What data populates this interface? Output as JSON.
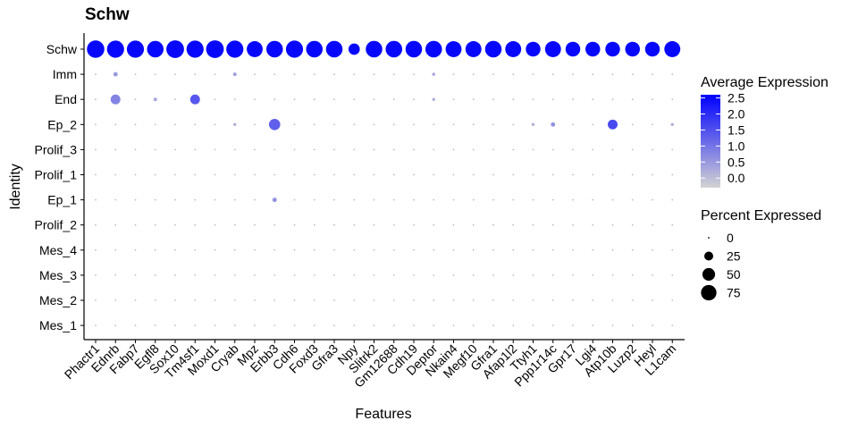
{
  "chart_data": {
    "type": "dotplot",
    "title": "Schw",
    "xlabel": "Features",
    "ylabel": "Identity",
    "features": [
      "Phactr1",
      "Ednrb",
      "Fabp7",
      "Egfl8",
      "Sox10",
      "Tm4sf1",
      "Moxd1",
      "Cryab",
      "Mpz",
      "Erbb3",
      "Cdh6",
      "Foxd3",
      "Gfra3",
      "Npy",
      "Slitrk2",
      "Gm12688",
      "Cdh19",
      "Deptor",
      "Nkain4",
      "Megf10",
      "Gfra1",
      "Afap1l2",
      "Ttyh1",
      "Ppp1r14c",
      "Gpr17",
      "Lgi4",
      "Atp10b",
      "Luzp2",
      "Heyl",
      "L1cam"
    ],
    "identities": [
      "Schw",
      "Imm",
      "End",
      "Ep_2",
      "Prolif_3",
      "Prolif_1",
      "Ep_1",
      "Prolif_2",
      "Mes_4",
      "Mes_3",
      "Mes_2",
      "Mes_1"
    ],
    "color_legend": {
      "title": "Average Expression",
      "ticks": [
        "2.5",
        "2.0",
        "1.5",
        "1.0",
        "0.5",
        "0.0"
      ],
      "tick_values": [
        2.5,
        2.0,
        1.5,
        1.0,
        0.5,
        0.0
      ],
      "range": [
        -0.3,
        2.6
      ],
      "low_color": "#d3d3d3",
      "high_color": "#0000ff"
    },
    "size_legend": {
      "title": "Percent Expressed",
      "values": [
        0,
        25,
        50,
        75
      ],
      "labels": [
        "0",
        "25",
        "50",
        "75"
      ]
    },
    "points": [
      {
        "identity": "Schw",
        "feature": "Phactr1",
        "pct": 95,
        "avg": 2.5
      },
      {
        "identity": "Schw",
        "feature": "Ednrb",
        "pct": 92,
        "avg": 2.5
      },
      {
        "identity": "Schw",
        "feature": "Fabp7",
        "pct": 92,
        "avg": 2.5
      },
      {
        "identity": "Schw",
        "feature": "Egfl8",
        "pct": 86,
        "avg": 2.5
      },
      {
        "identity": "Schw",
        "feature": "Sox10",
        "pct": 98,
        "avg": 2.5
      },
      {
        "identity": "Schw",
        "feature": "Tm4sf1",
        "pct": 92,
        "avg": 2.5
      },
      {
        "identity": "Schw",
        "feature": "Moxd1",
        "pct": 98,
        "avg": 2.5
      },
      {
        "identity": "Schw",
        "feature": "Cryab",
        "pct": 92,
        "avg": 2.5
      },
      {
        "identity": "Schw",
        "feature": "Mpz",
        "pct": 80,
        "avg": 2.5
      },
      {
        "identity": "Schw",
        "feature": "Erbb3",
        "pct": 86,
        "avg": 2.5
      },
      {
        "identity": "Schw",
        "feature": "Cdh6",
        "pct": 92,
        "avg": 2.5
      },
      {
        "identity": "Schw",
        "feature": "Foxd3",
        "pct": 86,
        "avg": 2.5
      },
      {
        "identity": "Schw",
        "feature": "Gfra3",
        "pct": 86,
        "avg": 2.5
      },
      {
        "identity": "Schw",
        "feature": "Npy",
        "pct": 40,
        "avg": 2.5
      },
      {
        "identity": "Schw",
        "feature": "Slitrk2",
        "pct": 86,
        "avg": 2.5
      },
      {
        "identity": "Schw",
        "feature": "Gm12688",
        "pct": 86,
        "avg": 2.5
      },
      {
        "identity": "Schw",
        "feature": "Cdh19",
        "pct": 86,
        "avg": 2.5
      },
      {
        "identity": "Schw",
        "feature": "Deptor",
        "pct": 86,
        "avg": 2.5
      },
      {
        "identity": "Schw",
        "feature": "Nkain4",
        "pct": 80,
        "avg": 2.5
      },
      {
        "identity": "Schw",
        "feature": "Megf10",
        "pct": 80,
        "avg": 2.5
      },
      {
        "identity": "Schw",
        "feature": "Gfra1",
        "pct": 86,
        "avg": 2.5
      },
      {
        "identity": "Schw",
        "feature": "Afap1l2",
        "pct": 80,
        "avg": 2.5
      },
      {
        "identity": "Schw",
        "feature": "Ttyh1",
        "pct": 68,
        "avg": 2.5
      },
      {
        "identity": "Schw",
        "feature": "Ppp1r14c",
        "pct": 80,
        "avg": 2.5
      },
      {
        "identity": "Schw",
        "feature": "Gpr17",
        "pct": 68,
        "avg": 2.5
      },
      {
        "identity": "Schw",
        "feature": "Lgi4",
        "pct": 68,
        "avg": 2.5
      },
      {
        "identity": "Schw",
        "feature": "Atp10b",
        "pct": 68,
        "avg": 2.5
      },
      {
        "identity": "Schw",
        "feature": "Luzp2",
        "pct": 68,
        "avg": 2.5
      },
      {
        "identity": "Schw",
        "feature": "Heyl",
        "pct": 68,
        "avg": 2.5
      },
      {
        "identity": "Schw",
        "feature": "L1cam",
        "pct": 80,
        "avg": 2.5
      },
      {
        "identity": "Imm",
        "feature": "Ednrb",
        "pct": 6,
        "avg": 0.5
      },
      {
        "identity": "Imm",
        "feature": "Cryab",
        "pct": 4,
        "avg": 0.4
      },
      {
        "identity": "Imm",
        "feature": "Deptor",
        "pct": 3,
        "avg": 0.3
      },
      {
        "identity": "End",
        "feature": "Ednrb",
        "pct": 30,
        "avg": 0.8
      },
      {
        "identity": "End",
        "feature": "Egfl8",
        "pct": 4,
        "avg": 0.3
      },
      {
        "identity": "End",
        "feature": "Tm4sf1",
        "pct": 30,
        "avg": 1.4
      },
      {
        "identity": "End",
        "feature": "Deptor",
        "pct": 3,
        "avg": 0.2
      },
      {
        "identity": "Ep_2",
        "feature": "Cryab",
        "pct": 3,
        "avg": 0.2
      },
      {
        "identity": "Ep_2",
        "feature": "Erbb3",
        "pct": 40,
        "avg": 1.3
      },
      {
        "identity": "Ep_2",
        "feature": "Ttyh1",
        "pct": 3,
        "avg": 0.2
      },
      {
        "identity": "Ep_2",
        "feature": "Ppp1r14c",
        "pct": 6,
        "avg": 0.6
      },
      {
        "identity": "Ep_2",
        "feature": "Atp10b",
        "pct": 30,
        "avg": 1.6
      },
      {
        "identity": "Ep_2",
        "feature": "L1cam",
        "pct": 3,
        "avg": 0.2
      },
      {
        "identity": "Ep_1",
        "feature": "Erbb3",
        "pct": 6,
        "avg": 0.6
      }
    ]
  }
}
